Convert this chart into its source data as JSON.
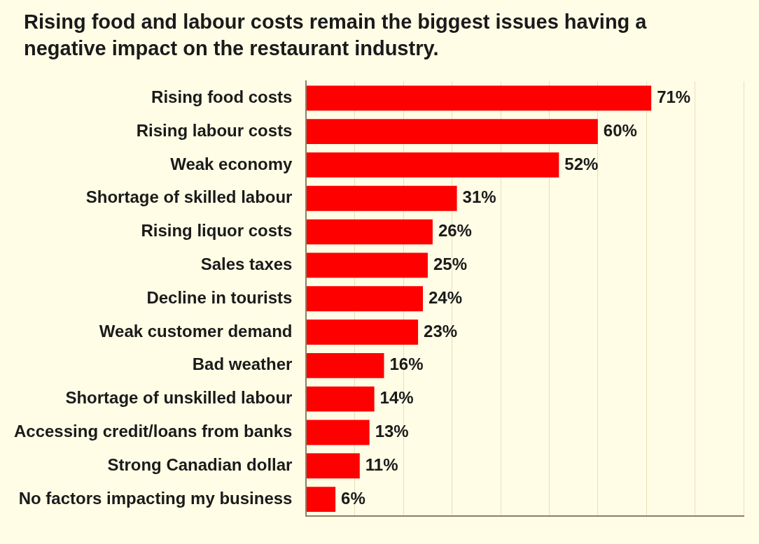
{
  "chart_data": {
    "type": "bar",
    "orientation": "horizontal",
    "title": "Rising food and labour costs remain the biggest issues having a negative impact on the restaurant industry.",
    "categories": [
      "Rising food costs",
      "Rising labour costs",
      "Weak economy",
      "Shortage of skilled labour",
      "Rising liquor costs",
      "Sales taxes",
      "Decline in tourists",
      "Weak customer demand",
      "Bad weather",
      "Shortage of unskilled labour",
      "Accessing credit/loans from banks",
      "Strong Canadian dollar",
      "No factors impacting my business"
    ],
    "values": [
      71,
      60,
      52,
      31,
      26,
      25,
      24,
      23,
      16,
      14,
      13,
      11,
      6
    ],
    "value_labels": [
      "71%",
      "60%",
      "52%",
      "31%",
      "26%",
      "25%",
      "24%",
      "23%",
      "16%",
      "14%",
      "13%",
      "11%",
      "6%"
    ],
    "color": "#ff0000",
    "xlim": [
      0,
      90
    ],
    "xticks": [
      {
        "value": 0,
        "label": null
      },
      {
        "value": 10,
        "label": null
      },
      {
        "value": 20,
        "label": null
      },
      {
        "value": 30,
        "label": null
      },
      {
        "value": 40,
        "label": null
      },
      {
        "value": 50,
        "label": null
      },
      {
        "value": 60,
        "label": null
      },
      {
        "value": 70,
        "label": null
      },
      {
        "value": 80,
        "label": null
      },
      {
        "value": 90,
        "label": null
      }
    ],
    "tick_labels": "y",
    "grid": "x",
    "legend": false
  }
}
